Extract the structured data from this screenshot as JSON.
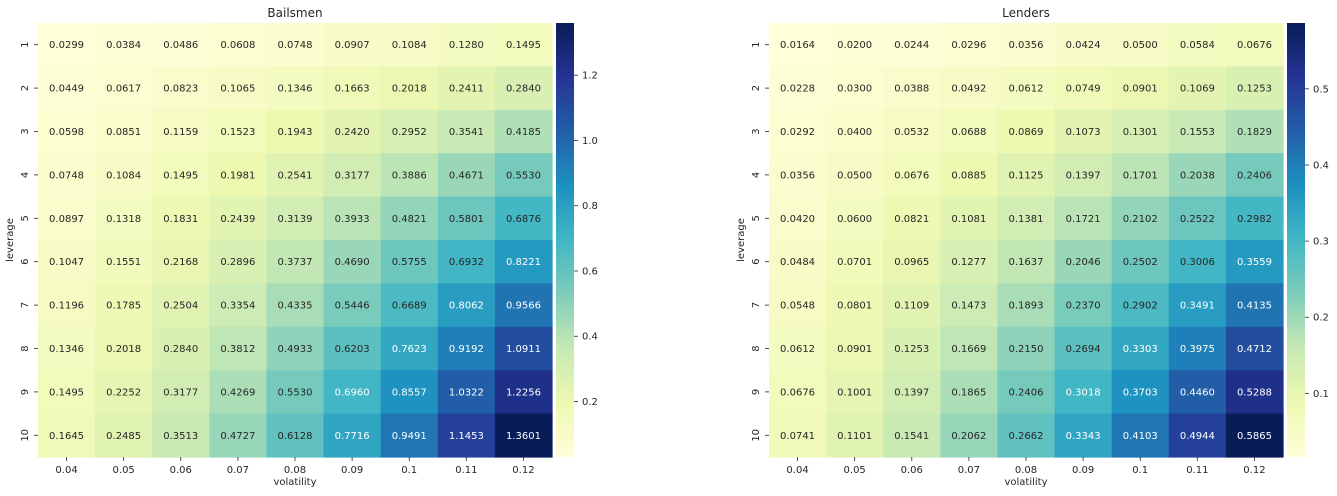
{
  "chart_data": [
    {
      "type": "heatmap",
      "title": "Bailsmen",
      "xlabel": "volatility",
      "ylabel": "leverage",
      "x": [
        "0.04",
        "0.05",
        "0.06",
        "0.07",
        "0.08",
        "0.09",
        "0.1",
        "0.11",
        "0.12"
      ],
      "y": [
        "1",
        "2",
        "3",
        "4",
        "5",
        "6",
        "7",
        "8",
        "9",
        "10"
      ],
      "values": [
        [
          "0.0299",
          "0.0384",
          "0.0486",
          "0.0608",
          "0.0748",
          "0.0907",
          "0.1084",
          "0.1280",
          "0.1495"
        ],
        [
          "0.0449",
          "0.0617",
          "0.0823",
          "0.1065",
          "0.1346",
          "0.1663",
          "0.2018",
          "0.2411",
          "0.2840"
        ],
        [
          "0.0598",
          "0.0851",
          "0.1159",
          "0.1523",
          "0.1943",
          "0.2420",
          "0.2952",
          "0.3541",
          "0.4185"
        ],
        [
          "0.0748",
          "0.1084",
          "0.1495",
          "0.1981",
          "0.2541",
          "0.3177",
          "0.3886",
          "0.4671",
          "0.5530"
        ],
        [
          "0.0897",
          "0.1318",
          "0.1831",
          "0.2439",
          "0.3139",
          "0.3933",
          "0.4821",
          "0.5801",
          "0.6876"
        ],
        [
          "0.1047",
          "0.1551",
          "0.2168",
          "0.2896",
          "0.3737",
          "0.4690",
          "0.5755",
          "0.6932",
          "0.8221"
        ],
        [
          "0.1196",
          "0.1785",
          "0.2504",
          "0.3354",
          "0.4335",
          "0.5446",
          "0.6689",
          "0.8062",
          "0.9566"
        ],
        [
          "0.1346",
          "0.2018",
          "0.2840",
          "0.3812",
          "0.4933",
          "0.6203",
          "0.7623",
          "0.9192",
          "1.0911"
        ],
        [
          "0.1495",
          "0.2252",
          "0.3177",
          "0.4269",
          "0.5530",
          "0.6960",
          "0.8557",
          "1.0322",
          "1.2256"
        ],
        [
          "0.1645",
          "0.2485",
          "0.3513",
          "0.4727",
          "0.6128",
          "0.7716",
          "0.9491",
          "1.1453",
          "1.3601"
        ]
      ],
      "colorbar": {
        "colormap": "YlGnBu",
        "range": [
          0.0299,
          1.3601
        ],
        "ticks": [
          "0.2",
          "0.4",
          "0.6",
          "0.8",
          "1.0",
          "1.2"
        ]
      }
    },
    {
      "type": "heatmap",
      "title": "Lenders",
      "xlabel": "volatility",
      "ylabel": "leverage",
      "x": [
        "0.04",
        "0.05",
        "0.06",
        "0.07",
        "0.08",
        "0.09",
        "0.1",
        "0.11",
        "0.12"
      ],
      "y": [
        "1",
        "2",
        "3",
        "4",
        "5",
        "6",
        "7",
        "8",
        "9",
        "10"
      ],
      "values": [
        [
          "0.0164",
          "0.0200",
          "0.0244",
          "0.0296",
          "0.0356",
          "0.0424",
          "0.0500",
          "0.0584",
          "0.0676"
        ],
        [
          "0.0228",
          "0.0300",
          "0.0388",
          "0.0492",
          "0.0612",
          "0.0749",
          "0.0901",
          "0.1069",
          "0.1253"
        ],
        [
          "0.0292",
          "0.0400",
          "0.0532",
          "0.0688",
          "0.0869",
          "0.1073",
          "0.1301",
          "0.1553",
          "0.1829"
        ],
        [
          "0.0356",
          "0.0500",
          "0.0676",
          "0.0885",
          "0.1125",
          "0.1397",
          "0.1701",
          "0.2038",
          "0.2406"
        ],
        [
          "0.0420",
          "0.0600",
          "0.0821",
          "0.1081",
          "0.1381",
          "0.1721",
          "0.2102",
          "0.2522",
          "0.2982"
        ],
        [
          "0.0484",
          "0.0701",
          "0.0965",
          "0.1277",
          "0.1637",
          "0.2046",
          "0.2502",
          "0.3006",
          "0.3559"
        ],
        [
          "0.0548",
          "0.0801",
          "0.1109",
          "0.1473",
          "0.1893",
          "0.2370",
          "0.2902",
          "0.3491",
          "0.4135"
        ],
        [
          "0.0612",
          "0.0901",
          "0.1253",
          "0.1669",
          "0.2150",
          "0.2694",
          "0.3303",
          "0.3975",
          "0.4712"
        ],
        [
          "0.0676",
          "0.1001",
          "0.1397",
          "0.1865",
          "0.2406",
          "0.3018",
          "0.3703",
          "0.4460",
          "0.5288"
        ],
        [
          "0.0741",
          "0.1101",
          "0.1541",
          "0.2062",
          "0.2662",
          "0.3343",
          "0.4103",
          "0.4944",
          "0.5865"
        ]
      ],
      "colorbar": {
        "colormap": "YlGnBu",
        "range": [
          0.0164,
          0.5865
        ],
        "ticks": [
          "0.1",
          "0.2",
          "0.3",
          "0.4",
          "0.5"
        ]
      }
    }
  ]
}
